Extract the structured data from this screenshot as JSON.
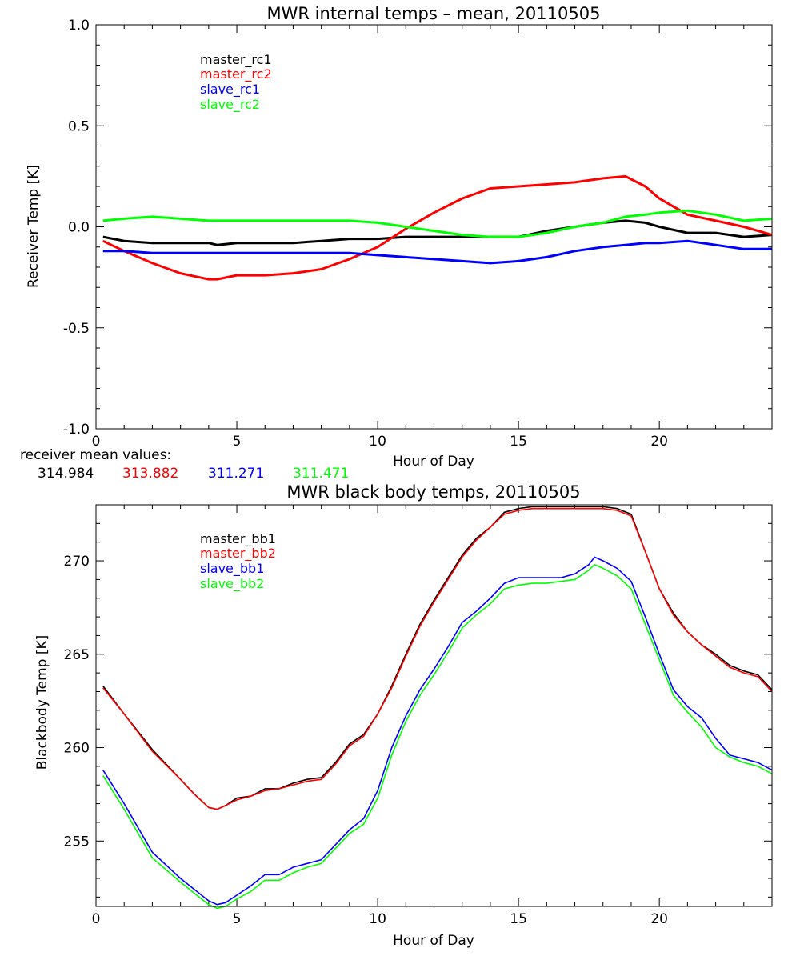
{
  "chart_data": [
    {
      "type": "line",
      "title": "MWR internal temps – mean, 20110505",
      "xlabel": "Hour of Day",
      "ylabel": "Receiver Temp [K]",
      "xlim": [
        0,
        24
      ],
      "ylim": [
        -1.0,
        1.0
      ],
      "x_ticks": [
        0,
        5,
        10,
        15,
        20
      ],
      "y_ticks": [
        "1.0",
        "0.5",
        "0.0",
        "-0.5",
        "-1.0"
      ],
      "y_tick_values": [
        1.0,
        0.5,
        0.0,
        -0.5,
        -1.0
      ],
      "legend_position": "top-left",
      "grid": false,
      "x": [
        0.25,
        1,
        2,
        3,
        4,
        4.3,
        5,
        6,
        7,
        8,
        9,
        10,
        11,
        12,
        13,
        14,
        15,
        16,
        17,
        18,
        18.8,
        19.5,
        20,
        21,
        22,
        23,
        24
      ],
      "series": [
        {
          "name": "master_rc1",
          "color": "#000000",
          "values": [
            -0.05,
            -0.07,
            -0.08,
            -0.08,
            -0.08,
            -0.09,
            -0.08,
            -0.08,
            -0.08,
            -0.07,
            -0.06,
            -0.06,
            -0.05,
            -0.05,
            -0.05,
            -0.05,
            -0.05,
            -0.02,
            0.0,
            0.02,
            0.03,
            0.02,
            0.0,
            -0.03,
            -0.03,
            -0.05,
            -0.04
          ]
        },
        {
          "name": "master_rc2",
          "color": "#ff0000",
          "values": [
            -0.07,
            -0.12,
            -0.18,
            -0.23,
            -0.26,
            -0.26,
            -0.24,
            -0.24,
            -0.23,
            -0.21,
            -0.16,
            -0.1,
            -0.01,
            0.07,
            0.14,
            0.19,
            0.2,
            0.21,
            0.22,
            0.24,
            0.25,
            0.2,
            0.14,
            0.06,
            0.03,
            0.0,
            -0.04
          ]
        },
        {
          "name": "slave_rc1",
          "color": "#0000ff",
          "values": [
            -0.12,
            -0.12,
            -0.13,
            -0.13,
            -0.13,
            -0.13,
            -0.13,
            -0.13,
            -0.13,
            -0.13,
            -0.13,
            -0.14,
            -0.15,
            -0.16,
            -0.17,
            -0.18,
            -0.17,
            -0.15,
            -0.12,
            -0.1,
            -0.09,
            -0.08,
            -0.08,
            -0.07,
            -0.09,
            -0.11,
            -0.11
          ]
        },
        {
          "name": "slave_rc2",
          "color": "#00ff00",
          "values": [
            0.03,
            0.04,
            0.05,
            0.04,
            0.03,
            0.03,
            0.03,
            0.03,
            0.03,
            0.03,
            0.03,
            0.02,
            0.0,
            -0.02,
            -0.04,
            -0.05,
            -0.05,
            -0.03,
            0.0,
            0.02,
            0.05,
            0.06,
            0.07,
            0.08,
            0.06,
            0.03,
            0.04
          ]
        }
      ],
      "footer": {
        "label": "receiver mean values:",
        "values": [
          {
            "text": "314.984",
            "color": "#000000"
          },
          {
            "text": "313.882",
            "color": "#ff0000"
          },
          {
            "text": "311.271",
            "color": "#0000ff"
          },
          {
            "text": "311.471",
            "color": "#00ff00"
          }
        ]
      }
    },
    {
      "type": "line",
      "title": "MWR black body temps, 20110505",
      "xlabel": "Hour of Day",
      "ylabel": "Blackbody Temp [K]",
      "xlim": [
        0,
        24
      ],
      "ylim": [
        251.5,
        273
      ],
      "x_ticks": [
        0,
        5,
        10,
        15,
        20
      ],
      "y_ticks": [
        "255",
        "260",
        "265",
        "270"
      ],
      "y_tick_values": [
        255,
        260,
        265,
        270
      ],
      "legend_position": "top-left",
      "grid": false,
      "x": [
        0.25,
        1,
        2,
        3,
        3.5,
        4,
        4.3,
        4.6,
        5,
        5.5,
        6,
        6.5,
        7,
        7.5,
        8,
        8.5,
        9,
        9.5,
        10,
        10.5,
        11,
        11.5,
        12,
        12.5,
        13,
        13.5,
        14,
        14.5,
        15,
        15.5,
        16,
        16.5,
        17,
        17.5,
        17.7,
        18,
        18.5,
        19,
        19.5,
        20,
        20.5,
        21,
        21.5,
        22,
        22.5,
        23,
        23.5,
        24
      ],
      "series": [
        {
          "name": "master_bb1",
          "color": "#000000",
          "values": [
            263.3,
            261.8,
            259.9,
            258.3,
            257.5,
            256.8,
            256.7,
            256.9,
            257.3,
            257.4,
            257.8,
            257.8,
            258.1,
            258.3,
            258.4,
            259.2,
            260.2,
            260.7,
            261.8,
            263.3,
            265.0,
            266.6,
            267.9,
            269.1,
            270.3,
            271.2,
            271.8,
            272.6,
            272.8,
            272.9,
            272.9,
            272.9,
            272.9,
            272.9,
            272.9,
            272.9,
            272.8,
            272.5,
            270.5,
            268.5,
            267.2,
            266.2,
            265.5,
            265.0,
            264.4,
            264.1,
            263.9,
            263.1
          ]
        },
        {
          "name": "master_bb2",
          "color": "#ff0000",
          "values": [
            263.2,
            261.8,
            259.8,
            258.3,
            257.5,
            256.8,
            256.7,
            256.9,
            257.2,
            257.4,
            257.7,
            257.8,
            258.0,
            258.2,
            258.3,
            259.1,
            260.1,
            260.6,
            261.8,
            263.2,
            264.9,
            266.5,
            267.8,
            269.0,
            270.2,
            271.1,
            271.8,
            272.5,
            272.7,
            272.8,
            272.8,
            272.8,
            272.8,
            272.8,
            272.8,
            272.8,
            272.7,
            272.4,
            270.5,
            268.5,
            267.1,
            266.2,
            265.5,
            264.9,
            264.3,
            264.0,
            263.8,
            263.0
          ]
        },
        {
          "name": "slave_bb1",
          "color": "#0000ff",
          "values": [
            258.8,
            257.0,
            254.4,
            253.0,
            252.4,
            251.8,
            251.6,
            251.7,
            252.1,
            252.6,
            253.2,
            253.2,
            253.6,
            253.8,
            254.0,
            254.8,
            255.6,
            256.2,
            257.7,
            260.0,
            261.7,
            263.1,
            264.2,
            265.4,
            266.7,
            267.3,
            268.0,
            268.8,
            269.1,
            269.1,
            269.1,
            269.1,
            269.3,
            269.8,
            270.2,
            270.0,
            269.6,
            268.9,
            267.0,
            265.0,
            263.1,
            262.2,
            261.6,
            260.5,
            259.6,
            259.4,
            259.2,
            258.8
          ]
        },
        {
          "name": "slave_bb2",
          "color": "#00ff00",
          "values": [
            258.5,
            256.7,
            254.1,
            252.8,
            252.2,
            251.6,
            251.4,
            251.5,
            251.9,
            252.3,
            252.9,
            252.9,
            253.3,
            253.6,
            253.8,
            254.6,
            255.4,
            255.9,
            257.3,
            259.6,
            261.4,
            262.8,
            263.9,
            265.1,
            266.4,
            267.1,
            267.7,
            268.5,
            268.7,
            268.8,
            268.8,
            268.9,
            269.0,
            269.5,
            269.8,
            269.6,
            269.2,
            268.5,
            266.6,
            264.7,
            262.8,
            261.9,
            261.1,
            260.0,
            259.5,
            259.2,
            259.0,
            258.6
          ]
        }
      ]
    }
  ]
}
